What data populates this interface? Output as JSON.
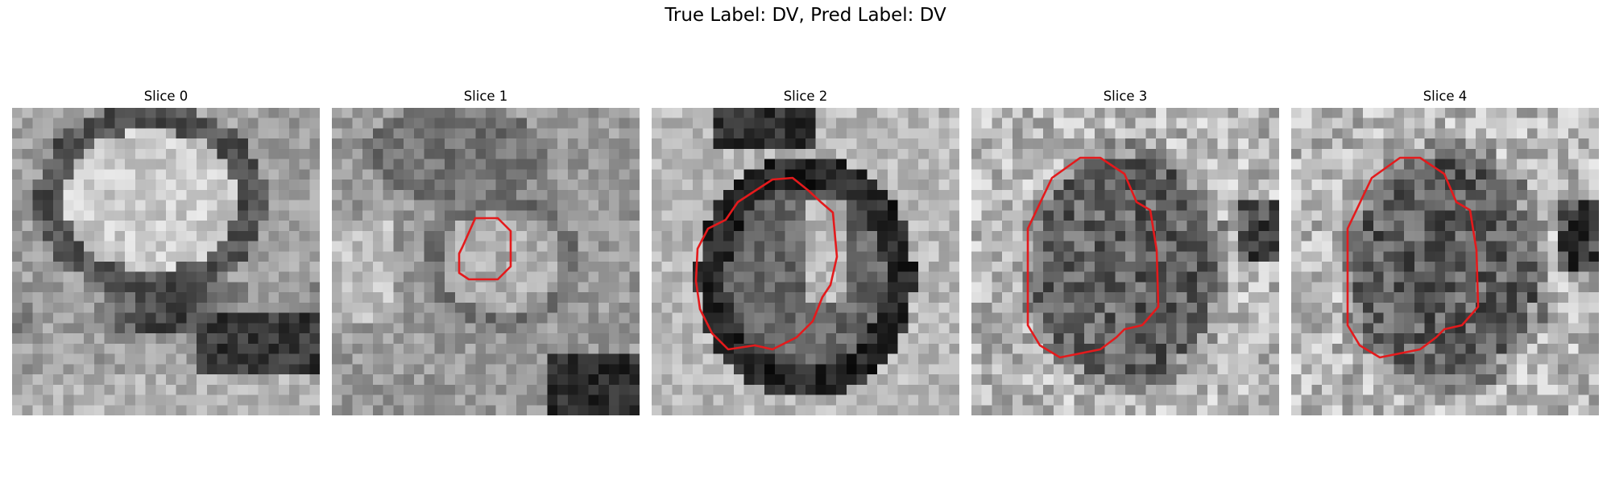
{
  "figure": {
    "title": "True Label: DV, Pred Label: DV"
  },
  "slices": [
    {
      "title": "Slice 0",
      "contour": false
    },
    {
      "title": "Slice 1",
      "contour": true
    },
    {
      "title": "Slice 2",
      "contour": true
    },
    {
      "title": "Slice 3",
      "contour": true
    },
    {
      "title": "Slice 4",
      "contour": true
    }
  ],
  "colors": {
    "contour": "#e41a1c",
    "background": "#ffffff"
  }
}
